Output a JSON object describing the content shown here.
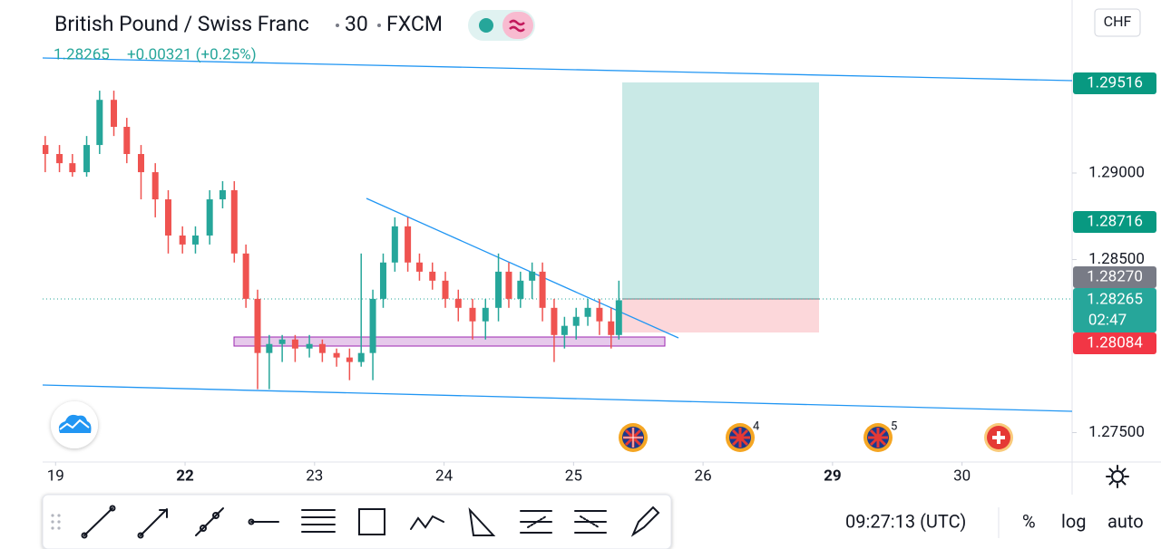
{
  "header": {
    "title": "British Pound / Swiss Franc",
    "interval": "30",
    "exchange": "FXCM",
    "last": "1.28265",
    "change": "+0.00321 (+0.25%)",
    "currency": "CHF"
  },
  "price_labels": {
    "target": "1.29516",
    "alert": "1.28716",
    "entry": "1.28270",
    "current": "1.28265",
    "countdown": "02:47",
    "stop": "1.28084"
  },
  "events": [
    "4",
    "5"
  ],
  "toolbar": {
    "time": "09:27:13 (UTC)",
    "percent": "%",
    "log": "log",
    "auto": "auto"
  },
  "chart_data": {
    "type": "candlestick",
    "x": [
      -0.08,
      0.03,
      0.13,
      0.24,
      0.34,
      0.45,
      0.55,
      0.66,
      0.77,
      0.87,
      0.98,
      1.08,
      1.19,
      1.29,
      1.38,
      1.47,
      1.56,
      1.65,
      1.75,
      1.85,
      1.96,
      2.06,
      2.17,
      2.27,
      2.36,
      2.45,
      2.53,
      2.62,
      2.72,
      2.81,
      2.91,
      3.01,
      3.11,
      3.22,
      3.32,
      3.42,
      3.5,
      3.59,
      3.68,
      3.76,
      3.85,
      3.93,
      4.02,
      4.11,
      4.2,
      4.29,
      4.35
    ],
    "open": [
      1.29162,
      1.2911,
      1.29057,
      1.29005,
      1.29162,
      1.29423,
      1.29267,
      1.2911,
      1.29005,
      1.28848,
      1.28639,
      1.28587,
      1.28639,
      1.28848,
      1.28901,
      1.28535,
      1.28273,
      1.2796,
      1.28012,
      1.28038,
      1.27986,
      1.28012,
      1.2796,
      1.27934,
      1.27908,
      1.2796,
      1.28273,
      1.28483,
      1.28692,
      1.28483,
      1.2843,
      1.28378,
      1.28273,
      1.28221,
      1.28143,
      1.28221,
      1.2843,
      1.28273,
      1.28378,
      1.2843,
      1.28221,
      1.28064,
      1.28117,
      1.28169,
      1.28221,
      1.28143,
      1.28064
    ],
    "high": [
      1.29214,
      1.29162,
      1.2911,
      1.29214,
      1.29476,
      1.29476,
      1.29319,
      1.29162,
      1.29057,
      1.28901,
      1.28692,
      1.28692,
      1.28901,
      1.28953,
      1.28953,
      1.28587,
      1.28326,
      1.28064,
      1.28064,
      1.28064,
      1.28064,
      1.28038,
      1.27986,
      1.27986,
      1.28535,
      1.28326,
      1.28535,
      1.28744,
      1.28744,
      1.28535,
      1.28483,
      1.2843,
      1.28326,
      1.28273,
      1.28273,
      1.28535,
      1.28483,
      1.2843,
      1.28483,
      1.28483,
      1.28273,
      1.28169,
      1.28221,
      1.28273,
      1.28273,
      1.28221,
      1.28378
    ],
    "low": [
      1.29005,
      1.29005,
      1.28979,
      1.28979,
      1.2911,
      1.29214,
      1.29057,
      1.28848,
      1.28744,
      1.28535,
      1.28535,
      1.28535,
      1.28587,
      1.28796,
      1.28483,
      1.28221,
      1.27751,
      1.27751,
      1.27908,
      1.27908,
      1.27934,
      1.27908,
      1.27881,
      1.27803,
      1.27881,
      1.27803,
      1.28221,
      1.2843,
      1.2843,
      1.28378,
      1.28326,
      1.28221,
      1.28143,
      1.28038,
      1.28038,
      1.28143,
      1.28221,
      1.28221,
      1.28273,
      1.28143,
      1.27908,
      1.27986,
      1.28038,
      1.28117,
      1.28064,
      1.27986,
      1.28038
    ],
    "close": [
      1.2911,
      1.29057,
      1.29005,
      1.29162,
      1.29423,
      1.29267,
      1.2911,
      1.29005,
      1.28848,
      1.28639,
      1.28587,
      1.28639,
      1.28848,
      1.28901,
      1.28535,
      1.28273,
      1.2796,
      1.28012,
      1.28038,
      1.27986,
      1.28012,
      1.2796,
      1.27934,
      1.27908,
      1.2796,
      1.28273,
      1.28483,
      1.28692,
      1.28483,
      1.2843,
      1.28378,
      1.28273,
      1.28221,
      1.28143,
      1.28221,
      1.2843,
      1.28273,
      1.28378,
      1.2843,
      1.28221,
      1.28064,
      1.28117,
      1.28169,
      1.28221,
      1.28143,
      1.28064,
      1.28265
    ],
    "up_color": "#26a69a",
    "down_color": "#ef5350",
    "xlim": [
      -0.1,
      7.85
    ],
    "xticks": [
      {
        "value": 0,
        "label": "19"
      },
      {
        "value": 1,
        "label": "22"
      },
      {
        "value": 2,
        "label": "23"
      },
      {
        "value": 3,
        "label": "24"
      },
      {
        "value": 4,
        "label": "25"
      },
      {
        "value": 5,
        "label": "26"
      },
      {
        "value": 6,
        "label": "29"
      },
      {
        "value": 7,
        "label": "30"
      }
    ],
    "ylim": [
      1.2733,
      1.3
    ],
    "yticks": [
      {
        "value": 1.29,
        "label": "1.29000"
      },
      {
        "value": 1.285,
        "label": "1.28500"
      },
      {
        "value": 1.275,
        "label": "1.27500"
      }
    ]
  }
}
